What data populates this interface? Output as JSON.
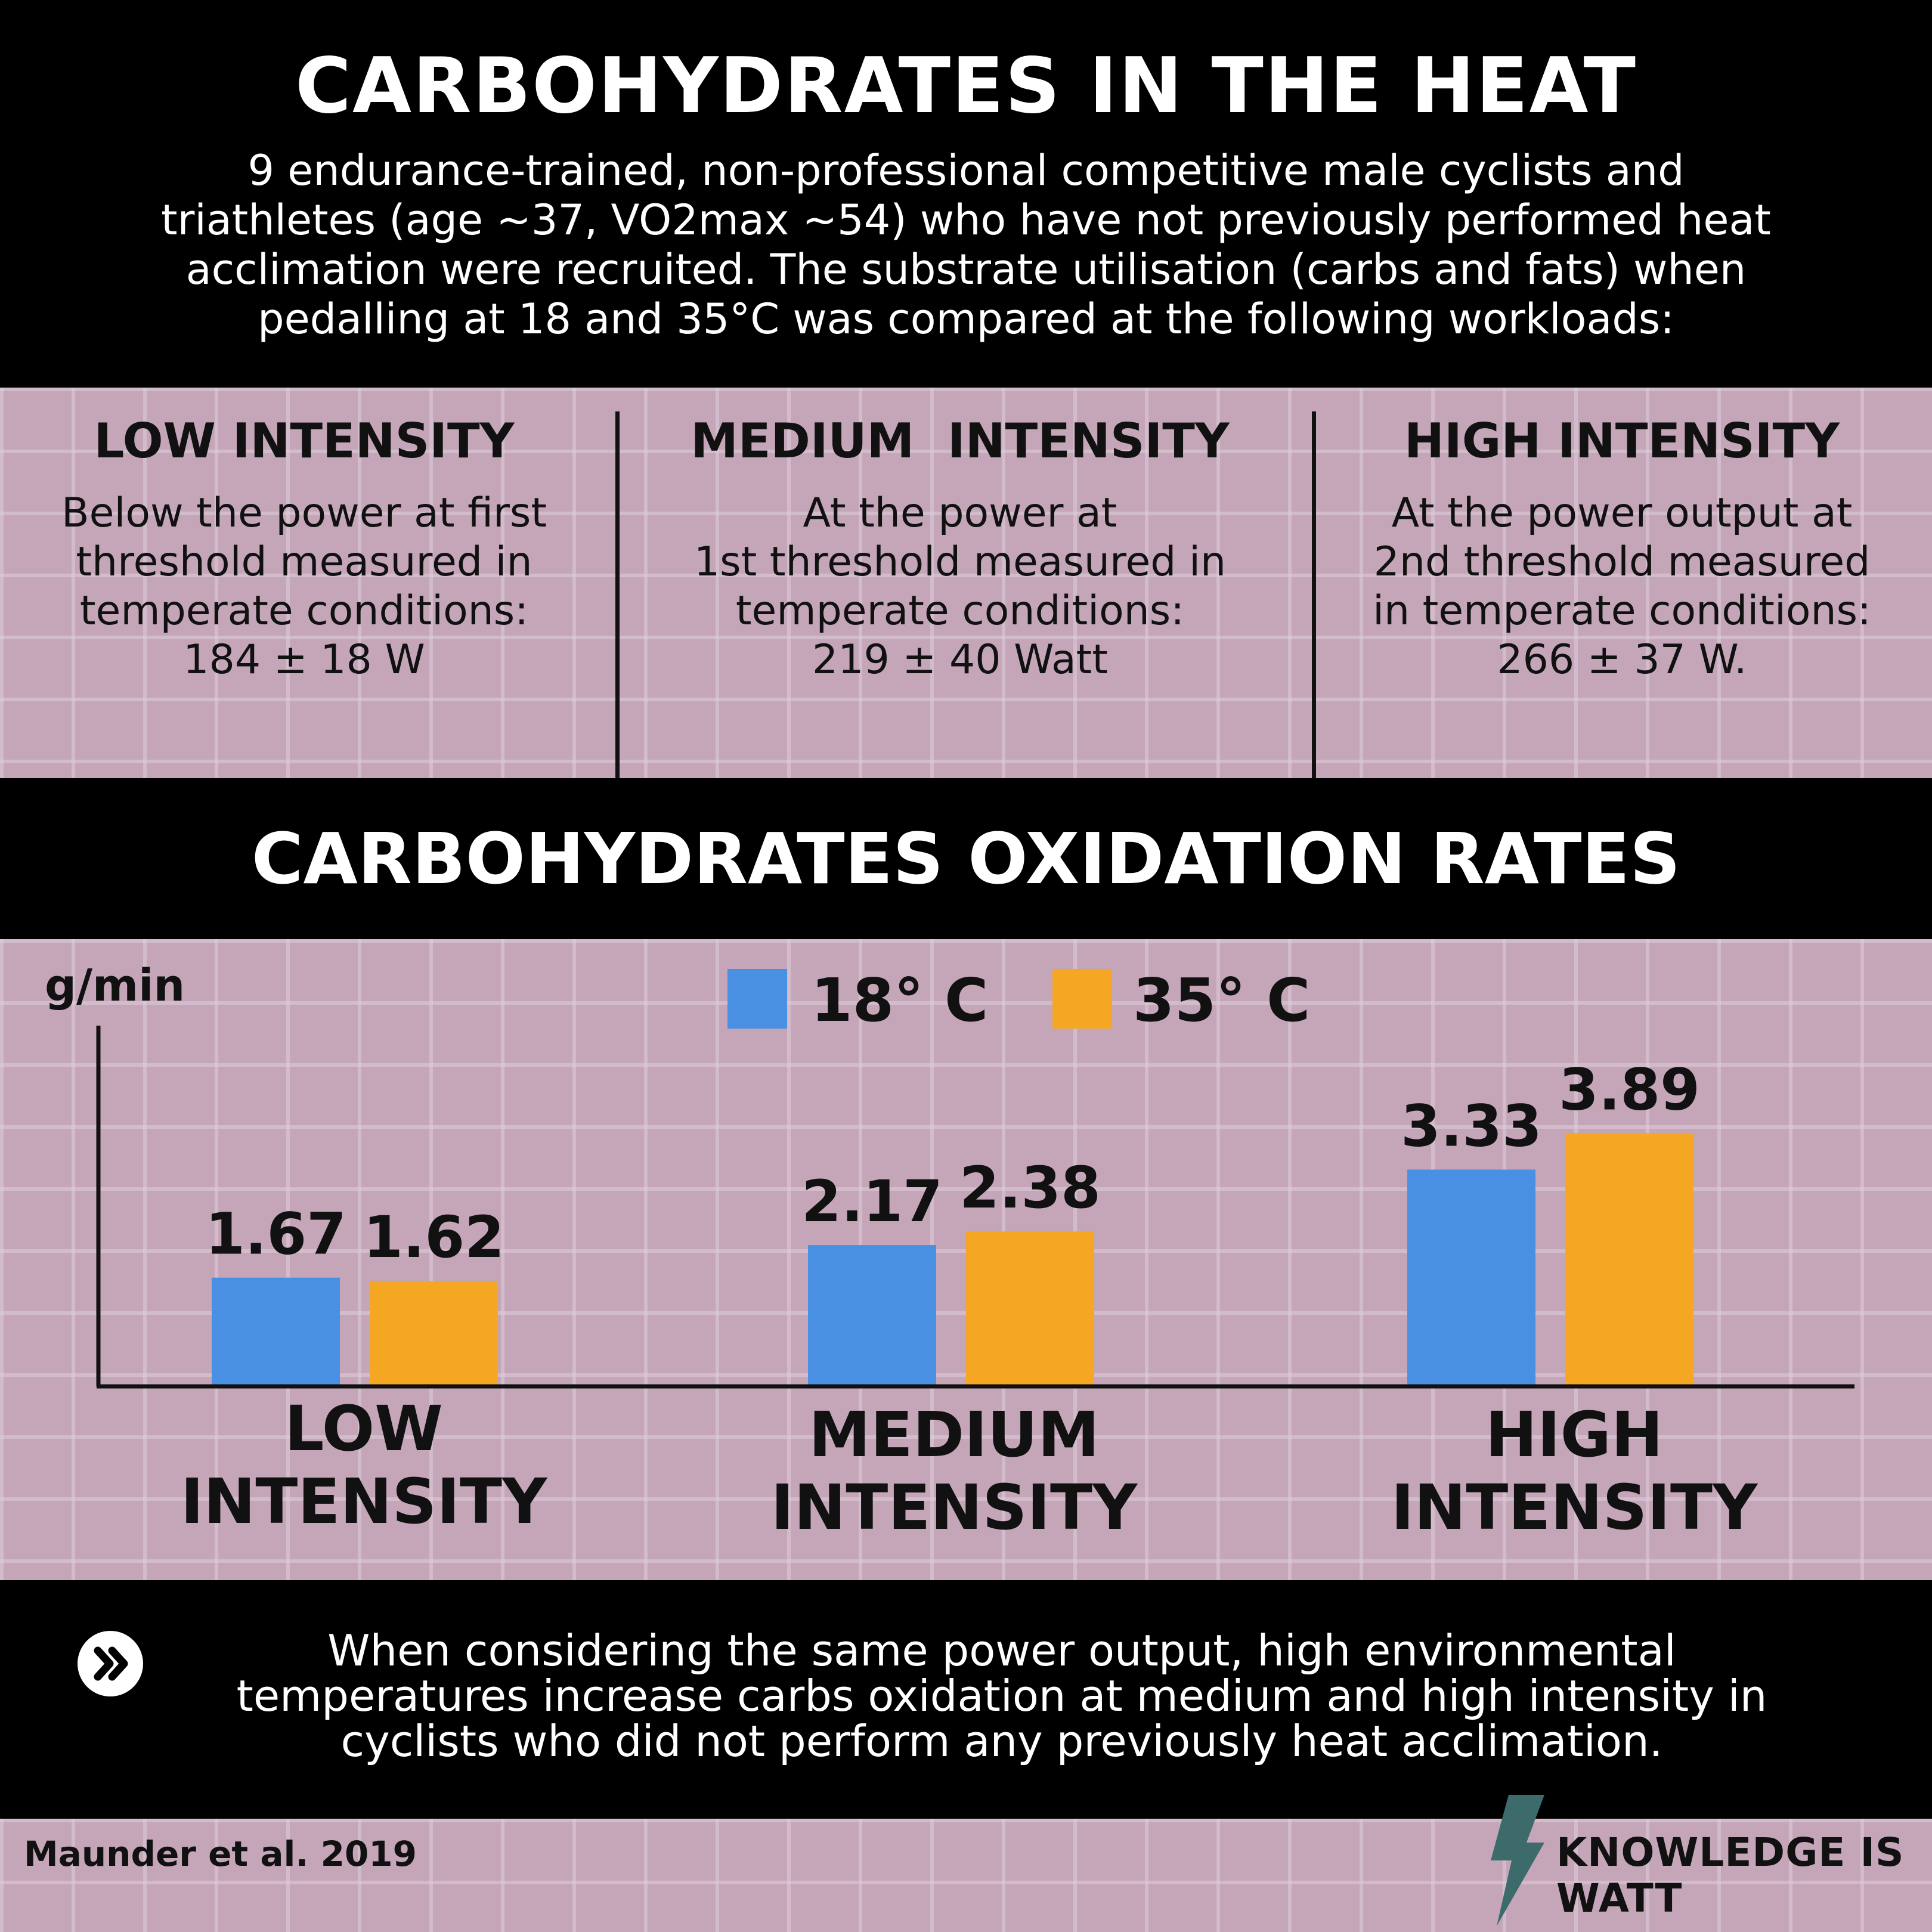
{
  "header": {
    "title": "CARBOHYDRATES IN THE HEAT",
    "intro_lines": [
      "9 endurance-trained, non-professional competitive male cyclists and",
      "triathletes (age ~37, VO2max ~54) who have not previously performed heat",
      "acclimation were recruited. The substrate utilisation (carbs and fats) when",
      "pedalling at 18 and 35°C was compared at the following workloads:"
    ]
  },
  "workloads": [
    {
      "heading": "LOW INTENSITY",
      "lines": [
        "Below the power at first",
        "threshold measured in",
        "temperate conditions:",
        "184 ± 18 W"
      ]
    },
    {
      "heading": "MEDIUM  INTENSITY",
      "lines": [
        "At the power at",
        "1st threshold measured in",
        "temperate conditions:",
        "219 ± 40 Watt"
      ]
    },
    {
      "heading": "HIGH INTENSITY",
      "lines": [
        "At the power output at",
        "2nd threshold measured",
        "in temperate conditions:",
        "266 ± 37 W."
      ]
    }
  ],
  "chart_data": {
    "type": "bar",
    "title": "CARBOHYDRATES OXIDATION RATES",
    "ylabel": "g/min",
    "xlabel": "",
    "categories": [
      [
        "LOW",
        "INTENSITY"
      ],
      [
        "MEDIUM",
        "INTENSITY"
      ],
      [
        "HIGH",
        "INTENSITY"
      ]
    ],
    "series": [
      {
        "name": "18° C",
        "color": "#4a90e2",
        "values": [
          1.67,
          2.17,
          3.33
        ]
      },
      {
        "name": "35° C",
        "color": "#f5a623",
        "values": [
          1.62,
          2.38,
          3.89
        ]
      }
    ],
    "data_labels": [
      [
        "1.67",
        "2.17",
        "3.33"
      ],
      [
        "1.62",
        "2.38",
        "3.89"
      ]
    ],
    "ylim": [
      0,
      5.45
    ],
    "grid": false,
    "legend_position": "top-center"
  },
  "conclusion": {
    "lines": [
      "When considering the same power output, high environmental",
      "temperatures increase carbs oxidation at medium and high intensity in",
      "cyclists who did not perform any previously heat acclimation."
    ],
    "icon": "double-chevron-right-icon"
  },
  "footer": {
    "citation": "Maunder et al. 2019",
    "brand": "KNOWLEDGE IS WATT",
    "brand_icon": "lightning-bolt-icon",
    "brand_icon_color": "#3d6b6b"
  },
  "colors": {
    "panel_black": "#000000",
    "text_dark": "#111111"
  }
}
